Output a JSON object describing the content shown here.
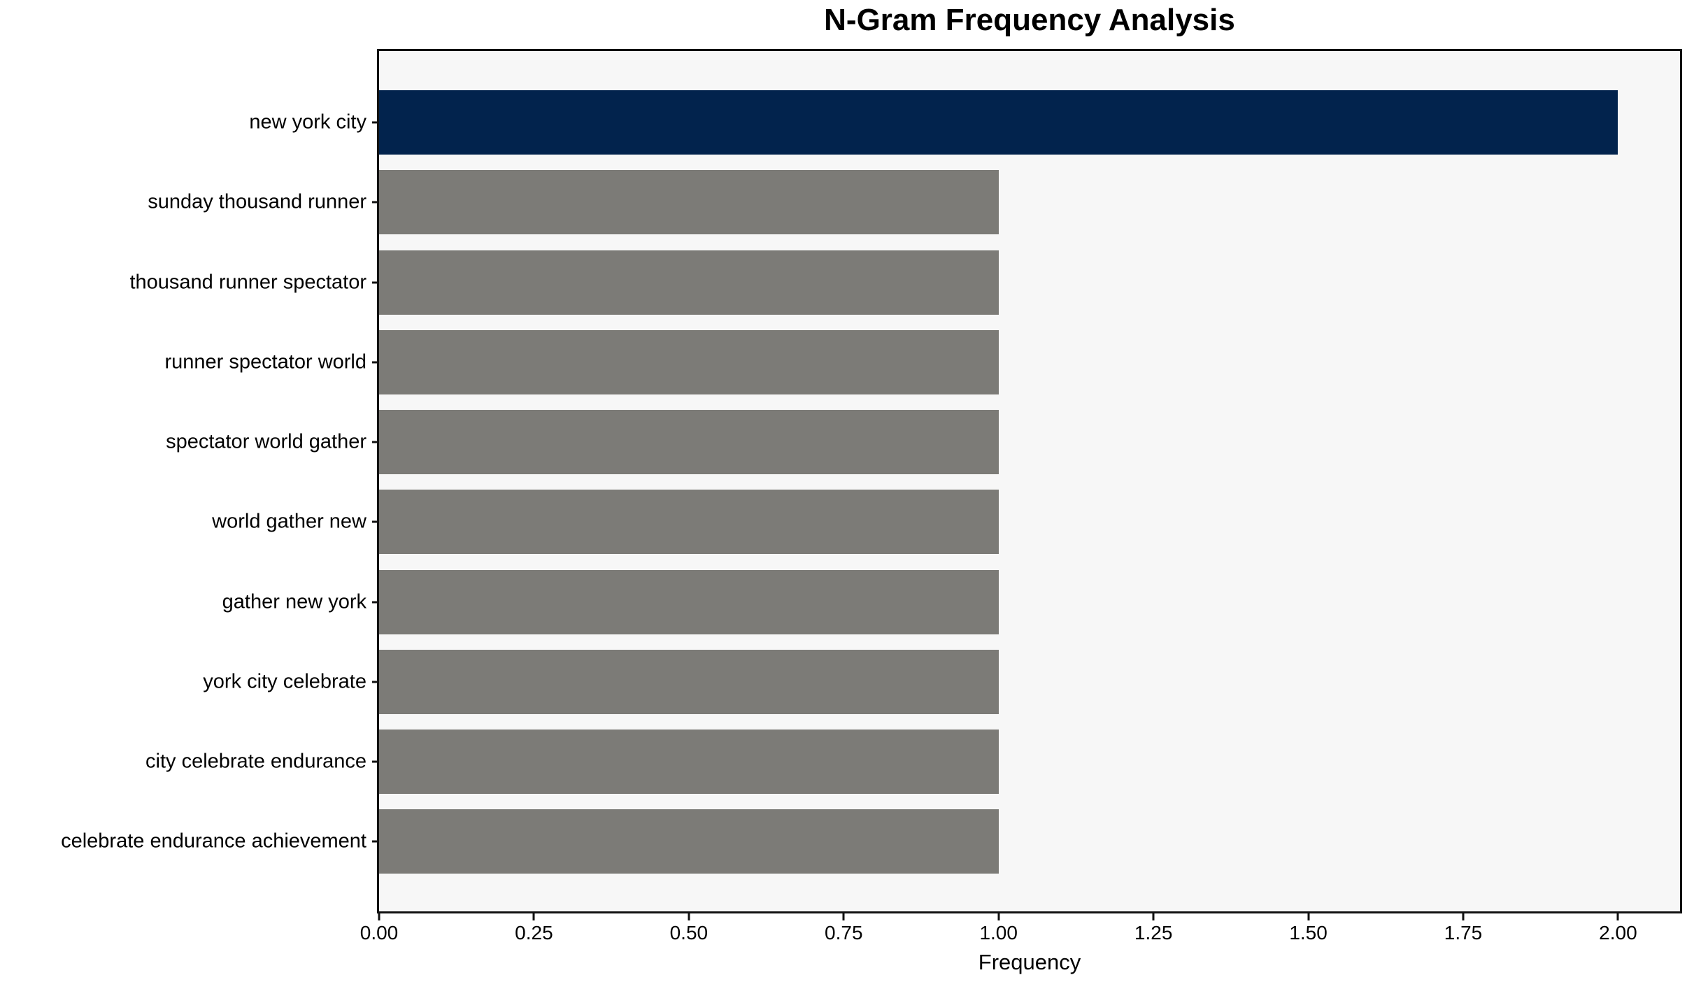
{
  "figure": {
    "title": "N-Gram Frequency Analysis"
  },
  "chart_data": {
    "type": "bar",
    "orientation": "horizontal",
    "title": "N-Gram Frequency Analysis",
    "xlabel": "Frequency",
    "ylabel": "",
    "categories": [
      "new york city",
      "sunday thousand runner",
      "thousand runner spectator",
      "runner spectator world",
      "spectator world gather",
      "world gather new",
      "gather new york",
      "york city celebrate",
      "city celebrate endurance",
      "celebrate endurance achievement"
    ],
    "values": [
      2,
      1,
      1,
      1,
      1,
      1,
      1,
      1,
      1,
      1
    ],
    "xlim": [
      0,
      2.1
    ],
    "xtick_labels": [
      "0.00",
      "0.25",
      "0.50",
      "0.75",
      "1.00",
      "1.25",
      "1.50",
      "1.75",
      "2.00"
    ],
    "grid": false,
    "legend": null,
    "highlight_index": 0,
    "colors": {
      "highlight_bar": "#02234d",
      "default_bar": "#7c7b77",
      "plot_background": "#f7f7f7",
      "spine": "#111111",
      "text": "#000000"
    }
  }
}
